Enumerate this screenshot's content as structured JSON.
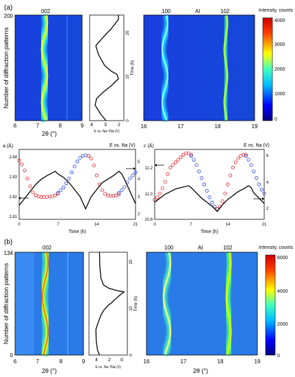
{
  "panels": {
    "a": {
      "label": "(a)"
    },
    "b": {
      "label": "(b)"
    }
  },
  "chart_data": [
    {
      "type": "heatmap",
      "panel": "a",
      "peak_label": "002",
      "xlabel": "2θ (°)",
      "ylabel": "Number of diffraction patterns",
      "xlim": [
        6,
        9
      ],
      "xticks": [
        "6",
        "7",
        "8",
        "9"
      ],
      "ylim": [
        0,
        200
      ],
      "yticks": [
        "0",
        "200"
      ],
      "peaks": [
        {
          "name": "002",
          "center": 7.3
        }
      ]
    },
    {
      "type": "line",
      "panel": "a",
      "xlabel": "E vs. Na⁺/Na (V)",
      "ylabel": "Time (h)",
      "xlim": [
        4.2,
        1.7
      ],
      "xticks": [
        "4",
        "3",
        "2"
      ],
      "ylim": [
        0,
        24
      ],
      "yticks": [
        "0",
        "10",
        "20"
      ],
      "x": [
        3.0,
        3.4,
        3.8,
        3.7,
        3.2,
        2.6,
        2.1,
        2.2,
        2.6,
        3.1,
        3.55,
        3.75,
        3.6,
        3.2,
        2.6,
        2.1,
        2.1
      ],
      "y": [
        0,
        1.5,
        3.5,
        5,
        6.5,
        8,
        9.5,
        10.5,
        11.2,
        12.5,
        15,
        17,
        17.6,
        19,
        21,
        23,
        24
      ]
    },
    {
      "type": "heatmap",
      "panel": "a",
      "peak_labels": [
        "100",
        "Al",
        "102"
      ],
      "xlim": [
        16,
        19
      ],
      "xticks": [
        "16",
        "17",
        "18",
        "19"
      ],
      "colorbar": {
        "label": "Intensity, counts",
        "min": 0,
        "max": 4000,
        "ticks": [
          "0",
          "1000",
          "2000",
          "3000",
          "4000"
        ]
      },
      "peaks": [
        {
          "name": "100",
          "center": 16.6
        },
        {
          "name": "Al",
          "center": 17.45
        },
        {
          "name": "102",
          "center": 18.15
        }
      ]
    },
    {
      "type": "scatter",
      "panel": "a",
      "xlabel": "Time (h)",
      "ylabel": "a (Å)",
      "ylabel2": "E vs. Na (V)",
      "xlim": [
        0,
        21
      ],
      "xticks": [
        "0",
        "7",
        "14",
        "21"
      ],
      "ylim": [
        2.81,
        2.845
      ],
      "yticks": [
        "2.81",
        "2.82",
        "2.83",
        "2.84"
      ],
      "y2lim": [
        1.5,
        5.5
      ],
      "y2ticks": [
        "2",
        "3",
        "4",
        "5"
      ],
      "series": [
        {
          "color": "#e0202a",
          "x": [
            0,
            0.5,
            1,
            1.5,
            2,
            2.5,
            3,
            3.5,
            4,
            4.5,
            5,
            5.5,
            6,
            6.5,
            7
          ],
          "y": [
            2.8395,
            2.8375,
            2.8345,
            2.8305,
            2.8265,
            2.8235,
            2.822,
            2.8215,
            2.8212,
            2.8212,
            2.8213,
            2.8214,
            2.8216,
            2.822,
            2.8228
          ]
        },
        {
          "color": "#2040d8",
          "x": [
            7,
            7.5,
            8,
            8.5,
            9,
            9.5,
            10,
            10.5,
            11,
            11.5,
            12,
            12.5
          ],
          "y": [
            2.8232,
            2.8245,
            2.826,
            2.828,
            2.8305,
            2.8335,
            2.8365,
            2.839,
            2.8408,
            2.8418,
            2.842,
            2.8418
          ]
        },
        {
          "color": "#e0202a",
          "x": [
            12.5,
            13,
            13.5,
            14,
            14.5,
            15,
            15.5,
            16,
            16.5,
            17,
            17.5,
            18
          ],
          "y": [
            2.8418,
            2.8405,
            2.837,
            2.832,
            2.8275,
            2.8245,
            2.8228,
            2.822,
            2.8218,
            2.8218,
            2.822,
            2.8225
          ]
        },
        {
          "color": "#2040d8",
          "x": [
            18,
            18.5,
            19,
            19.5,
            20,
            20.5,
            21
          ],
          "y": [
            2.8232,
            2.8245,
            2.8262,
            2.8285,
            2.8305,
            2.832,
            2.8335
          ]
        }
      ],
      "voltage": {
        "x": [
          0,
          1,
          2,
          3,
          4,
          5,
          6.5,
          7,
          8,
          9,
          10,
          11,
          12,
          13,
          14,
          15,
          16,
          17,
          18,
          18.5,
          19,
          20,
          21
        ],
        "y": [
          2.3,
          2.7,
          3.1,
          3.5,
          3.8,
          4.0,
          4.25,
          4.1,
          3.9,
          3.6,
          3.2,
          2.8,
          2.1,
          2.8,
          3.2,
          3.6,
          3.8,
          4.0,
          4.25,
          4.1,
          3.8,
          3.1,
          2.4
        ]
      }
    },
    {
      "type": "scatter",
      "panel": "a",
      "xlabel": "Time (h)",
      "ylabel": "c (Å)",
      "ylabel2": "E vs. Na (V)",
      "xlim": [
        0,
        21
      ],
      "xticks": [
        "0",
        "7",
        "14",
        "21"
      ],
      "ylim": [
        10.78,
        11.32
      ],
      "yticks": [
        "10.8",
        "11.0",
        "11.2"
      ],
      "y2lim": [
        1.5,
        6.8
      ],
      "y2ticks": [
        "2",
        "4",
        "6"
      ],
      "series": [
        {
          "color": "#e0202a",
          "x": [
            0,
            0.5,
            1,
            1.5,
            2,
            2.5,
            3,
            3.5,
            4,
            4.5,
            5,
            5.5,
            6,
            6.5,
            7
          ],
          "y": [
            10.93,
            10.95,
            10.98,
            11.02,
            11.07,
            11.13,
            11.18,
            11.2,
            11.22,
            11.24,
            11.26,
            11.28,
            11.29,
            11.29,
            11.28
          ]
        },
        {
          "color": "#2040d8",
          "x": [
            7,
            7.5,
            8,
            8.5,
            9,
            9.5,
            10,
            10.5,
            11,
            11.5,
            12
          ],
          "y": [
            11.27,
            11.24,
            11.2,
            11.15,
            11.1,
            11.05,
            11.0,
            10.95,
            10.91,
            10.88,
            10.86
          ]
        },
        {
          "color": "#e0202a",
          "x": [
            12,
            12.5,
            13,
            13.5,
            14,
            14.5,
            15,
            15.5,
            16,
            16.5,
            17,
            17.5
          ],
          "y": [
            10.86,
            10.88,
            10.92,
            10.98,
            11.05,
            11.12,
            11.18,
            11.22,
            11.25,
            11.27,
            11.28,
            11.28
          ]
        },
        {
          "color": "#2040d8",
          "x": [
            17.5,
            18,
            18.5,
            19,
            19.5,
            20,
            20.5,
            21
          ],
          "y": [
            11.27,
            11.24,
            11.2,
            11.15,
            11.1,
            11.05,
            11.01,
            10.98
          ]
        }
      ],
      "voltage": {
        "x": [
          0,
          1,
          2,
          3,
          4,
          5,
          6.5,
          7,
          8,
          9,
          10,
          11,
          12,
          13,
          14,
          15,
          16,
          17,
          18,
          18.5,
          19,
          20,
          21
        ],
        "y": [
          2.8,
          3.1,
          3.4,
          3.6,
          3.8,
          3.9,
          4.05,
          3.9,
          3.5,
          3.1,
          2.8,
          2.5,
          2.1,
          2.6,
          3.0,
          3.3,
          3.6,
          3.8,
          4.05,
          3.9,
          3.5,
          3.1,
          2.7
        ]
      }
    },
    {
      "type": "heatmap",
      "panel": "b",
      "peak_label": "002",
      "xlabel": "2θ (°)",
      "ylabel": "Number of diffraction patterns",
      "xlim": [
        6,
        9
      ],
      "xticks": [
        "6",
        "7",
        "8",
        "9"
      ],
      "ylim": [
        0,
        134
      ],
      "yticks": [
        "0",
        "134"
      ],
      "peaks": [
        {
          "name": "002",
          "center": 7.3
        }
      ]
    },
    {
      "type": "line",
      "panel": "b",
      "xlabel": "E vs. Na⁺/Na (V)",
      "ylabel": "Time (h)",
      "xlim": [
        5,
        -0.8
      ],
      "xticks": [
        "4",
        "2",
        "0"
      ],
      "ylim": [
        0,
        22
      ],
      "yticks": [
        "0",
        "10",
        "20"
      ],
      "x": [
        3.4,
        3.7,
        3.9,
        3.95,
        3.6,
        3.2,
        2.8,
        2.2,
        1.5,
        1.0,
        0.5,
        0.1,
        -0.1,
        -0.2,
        -0.3,
        0.0,
        0.8,
        2.0,
        2.8,
        3.2,
        3.35,
        3.4
      ],
      "y": [
        0,
        1,
        3,
        5.5,
        7,
        8.5,
        9.5,
        10.5,
        11.3,
        12,
        12.6,
        13.1,
        13.3,
        13.4,
        13.5,
        13.6,
        13.8,
        14.3,
        15,
        16.5,
        19,
        22
      ]
    },
    {
      "type": "heatmap",
      "panel": "b",
      "peak_labels": [
        "100",
        "Al",
        "102"
      ],
      "xlabel": "2θ (°)",
      "xlim": [
        16,
        19
      ],
      "xticks": [
        "16",
        "17",
        "18",
        "19"
      ],
      "colorbar": {
        "label": "Intensity, counts",
        "min": 0,
        "max": 6000,
        "ticks": [
          "0",
          "2000",
          "4000",
          "6000"
        ]
      },
      "peaks": [
        {
          "name": "100",
          "center": 16.6
        },
        {
          "name": "Al",
          "center": 17.45
        },
        {
          "name": "102",
          "center": 18.15
        }
      ]
    }
  ]
}
